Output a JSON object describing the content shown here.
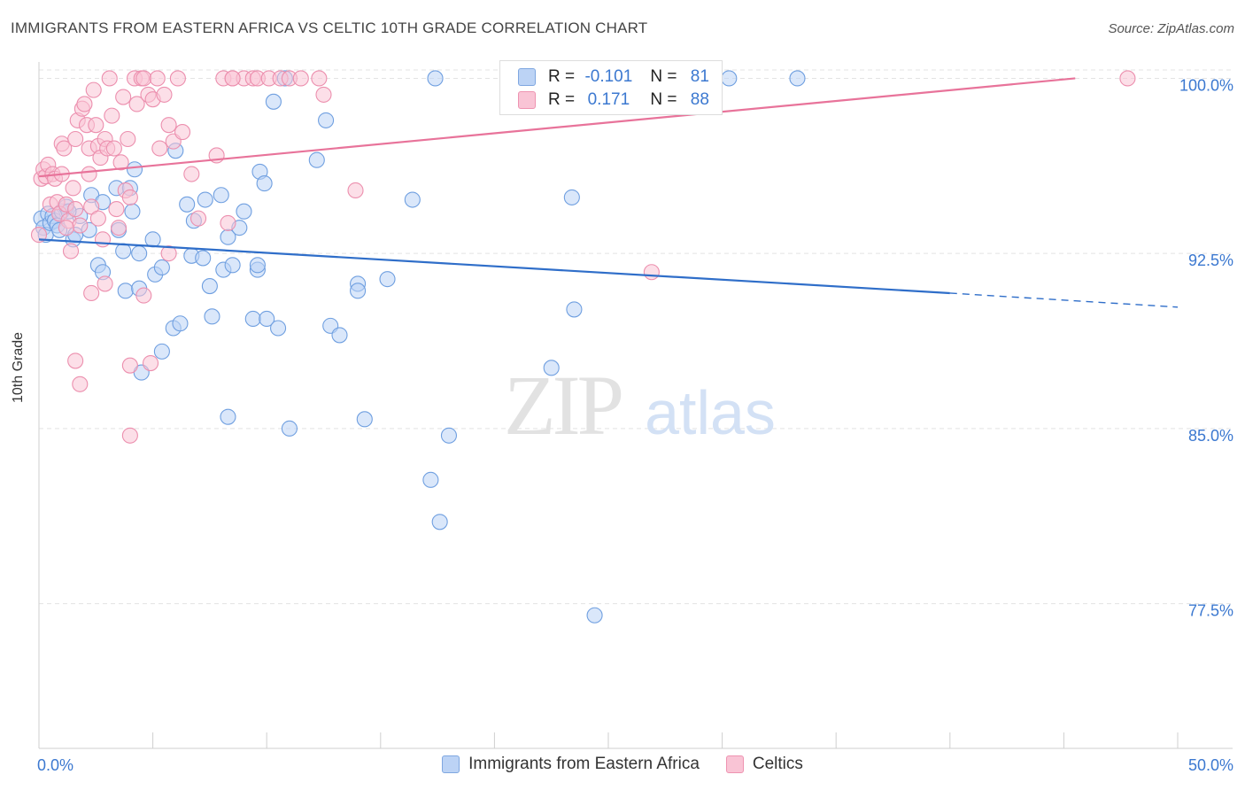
{
  "header": {
    "title": "IMMIGRANTS FROM EASTERN AFRICA VS CELTIC 10TH GRADE CORRELATION CHART",
    "source": "Source: ZipAtlas.com"
  },
  "watermark": {
    "zip": "ZIP",
    "atlas": "atlas"
  },
  "stats_box": {
    "rows": [
      {
        "r_label": "R = ",
        "r_value": "-0.101",
        "n_label": "N = ",
        "n_value": "81"
      },
      {
        "r_label": "R = ",
        "r_value": "0.171",
        "n_label": "N = ",
        "n_value": "88"
      }
    ]
  },
  "colors": {
    "blue_fill": "#bcd3f5",
    "blue_stroke": "#6f9fe0",
    "blue_line": "#2f6ec9",
    "pink_fill": "#f9c4d5",
    "pink_stroke": "#ec8fae",
    "pink_line": "#e8739a",
    "axis_text": "#3b78d0",
    "grid": "#e3e3e3"
  },
  "chart_data": {
    "type": "scatter",
    "title": "IMMIGRANTS FROM EASTERN AFRICA VS CELTIC 10TH GRADE CORRELATION CHART",
    "xlabel": "",
    "ylabel": "10th Grade",
    "xlim": [
      0,
      50
    ],
    "ylim": [
      71.3,
      100.7
    ],
    "x_tick_labels": [
      {
        "value": 0,
        "label": "0.0%"
      },
      {
        "value": 50,
        "label": "50.0%"
      }
    ],
    "y_tick_labels": [
      {
        "value": 100,
        "label": "100.0%"
      },
      {
        "value": 92.5,
        "label": "92.5%"
      },
      {
        "value": 85,
        "label": "85.0%"
      },
      {
        "value": 77.5,
        "label": "77.5%"
      }
    ],
    "grid": true,
    "legend_position": "bottom-center",
    "series": [
      {
        "name": "Immigrants from Eastern Africa",
        "color": "#bcd3f5",
        "trend": {
          "x_start": 0,
          "y_start": 93.1,
          "x_solid_end": 40,
          "y_solid_end": 90.8,
          "x_end": 50,
          "y_end": 90.2
        },
        "points": [
          [
            0.1,
            94.0
          ],
          [
            0.2,
            93.6
          ],
          [
            0.3,
            93.3
          ],
          [
            0.4,
            94.2
          ],
          [
            0.5,
            93.8
          ],
          [
            0.6,
            94.1
          ],
          [
            0.7,
            93.9
          ],
          [
            0.8,
            93.7
          ],
          [
            0.9,
            93.5
          ],
          [
            1.0,
            94.3
          ],
          [
            1.2,
            94.5
          ],
          [
            1.5,
            93.1
          ],
          [
            1.6,
            93.3
          ],
          [
            1.8,
            94.1
          ],
          [
            2.2,
            93.5
          ],
          [
            2.3,
            95.0
          ],
          [
            2.8,
            94.7
          ],
          [
            3.4,
            95.3
          ],
          [
            3.5,
            93.5
          ],
          [
            4.0,
            95.3
          ],
          [
            4.1,
            94.3
          ],
          [
            4.2,
            96.1
          ],
          [
            4.4,
            92.5
          ],
          [
            3.7,
            92.6
          ],
          [
            2.6,
            92.0
          ],
          [
            2.8,
            91.7
          ],
          [
            3.8,
            90.9
          ],
          [
            4.4,
            91.0
          ],
          [
            5.0,
            93.1
          ],
          [
            5.1,
            91.6
          ],
          [
            5.4,
            91.9
          ],
          [
            5.9,
            89.3
          ],
          [
            6.2,
            89.5
          ],
          [
            5.4,
            88.3
          ],
          [
            4.5,
            87.4
          ],
          [
            6.5,
            94.6
          ],
          [
            6.8,
            93.9
          ],
          [
            7.3,
            94.8
          ],
          [
            8.0,
            95.0
          ],
          [
            6.7,
            92.4
          ],
          [
            7.2,
            92.3
          ],
          [
            7.5,
            91.1
          ],
          [
            7.6,
            89.8
          ],
          [
            8.1,
            91.8
          ],
          [
            8.3,
            93.2
          ],
          [
            8.5,
            92.0
          ],
          [
            8.8,
            93.6
          ],
          [
            9.0,
            94.3
          ],
          [
            9.4,
            89.7
          ],
          [
            9.6,
            91.8
          ],
          [
            9.7,
            96.0
          ],
          [
            9.9,
            95.5
          ],
          [
            10.0,
            89.7
          ],
          [
            10.3,
            99.0
          ],
          [
            10.5,
            89.3
          ],
          [
            10.8,
            100.0
          ],
          [
            11.0,
            85.0
          ],
          [
            8.3,
            85.5
          ],
          [
            12.2,
            96.5
          ],
          [
            12.6,
            98.2
          ],
          [
            12.8,
            89.4
          ],
          [
            13.2,
            89.0
          ],
          [
            14.0,
            91.2
          ],
          [
            14.0,
            90.9
          ],
          [
            14.3,
            85.4
          ],
          [
            15.3,
            91.4
          ],
          [
            16.4,
            94.8
          ],
          [
            17.2,
            82.8
          ],
          [
            17.4,
            100.0
          ],
          [
            17.6,
            81.0
          ],
          [
            18.0,
            84.7
          ],
          [
            22.5,
            87.6
          ],
          [
            23.4,
            94.9
          ],
          [
            23.5,
            90.1
          ],
          [
            24.6,
            100.0
          ],
          [
            30.3,
            100.0
          ],
          [
            33.3,
            100.0
          ],
          [
            24.4,
            77.0
          ],
          [
            1.3,
            94.3
          ],
          [
            6.0,
            96.9
          ],
          [
            9.6,
            92.0
          ]
        ]
      },
      {
        "name": "Celtics",
        "color": "#f9c4d5",
        "trend": {
          "x_start": 0,
          "y_start": 95.8,
          "x_end": 45.5,
          "y_end": 100.0
        },
        "points": [
          [
            0.0,
            93.3
          ],
          [
            0.1,
            95.7
          ],
          [
            0.2,
            96.1
          ],
          [
            0.3,
            95.8
          ],
          [
            0.4,
            96.3
          ],
          [
            0.5,
            94.6
          ],
          [
            0.6,
            95.9
          ],
          [
            0.7,
            95.7
          ],
          [
            0.8,
            94.7
          ],
          [
            0.9,
            94.2
          ],
          [
            1.0,
            97.2
          ],
          [
            1.0,
            95.9
          ],
          [
            1.1,
            97.0
          ],
          [
            1.2,
            94.6
          ],
          [
            1.3,
            93.9
          ],
          [
            1.4,
            92.6
          ],
          [
            1.5,
            95.3
          ],
          [
            1.6,
            94.4
          ],
          [
            1.6,
            97.4
          ],
          [
            1.7,
            98.2
          ],
          [
            1.8,
            93.7
          ],
          [
            1.9,
            98.7
          ],
          [
            2.0,
            98.9
          ],
          [
            2.1,
            98.0
          ],
          [
            2.2,
            97.0
          ],
          [
            2.2,
            95.9
          ],
          [
            2.3,
            94.5
          ],
          [
            2.4,
            99.5
          ],
          [
            2.5,
            98.0
          ],
          [
            2.6,
            97.1
          ],
          [
            2.7,
            96.6
          ],
          [
            2.8,
            93.1
          ],
          [
            2.9,
            97.4
          ],
          [
            3.0,
            97.0
          ],
          [
            3.1,
            100.0
          ],
          [
            3.2,
            98.4
          ],
          [
            3.3,
            97.0
          ],
          [
            3.4,
            94.4
          ],
          [
            3.5,
            93.6
          ],
          [
            3.7,
            99.2
          ],
          [
            3.8,
            95.2
          ],
          [
            3.9,
            97.4
          ],
          [
            4.0,
            94.9
          ],
          [
            4.2,
            100.0
          ],
          [
            4.3,
            98.9
          ],
          [
            4.5,
            100.0
          ],
          [
            4.6,
            100.0
          ],
          [
            4.8,
            99.3
          ],
          [
            5.0,
            99.1
          ],
          [
            5.2,
            100.0
          ],
          [
            5.3,
            97.0
          ],
          [
            5.5,
            99.3
          ],
          [
            5.7,
            98.0
          ],
          [
            5.9,
            97.3
          ],
          [
            6.1,
            100.0
          ],
          [
            6.3,
            97.7
          ],
          [
            6.7,
            95.9
          ],
          [
            7.0,
            94.0
          ],
          [
            7.8,
            96.7
          ],
          [
            8.1,
            100.0
          ],
          [
            8.3,
            93.8
          ],
          [
            8.5,
            100.0
          ],
          [
            9.0,
            100.0
          ],
          [
            9.4,
            100.0
          ],
          [
            9.6,
            100.0
          ],
          [
            10.1,
            100.0
          ],
          [
            10.6,
            100.0
          ],
          [
            11.0,
            100.0
          ],
          [
            11.5,
            100.0
          ],
          [
            12.3,
            100.0
          ],
          [
            12.5,
            99.3
          ],
          [
            13.9,
            95.2
          ],
          [
            24.7,
            100.0
          ],
          [
            26.9,
            91.7
          ],
          [
            47.8,
            100.0
          ],
          [
            2.9,
            91.2
          ],
          [
            4.6,
            90.7
          ],
          [
            4.0,
            87.7
          ],
          [
            1.6,
            87.9
          ],
          [
            1.8,
            86.9
          ],
          [
            2.3,
            90.8
          ],
          [
            4.0,
            84.7
          ],
          [
            4.9,
            87.8
          ],
          [
            3.6,
            96.4
          ],
          [
            5.7,
            92.5
          ],
          [
            1.2,
            93.6
          ],
          [
            2.6,
            94.0
          ],
          [
            8.5,
            100.0
          ]
        ]
      }
    ]
  }
}
